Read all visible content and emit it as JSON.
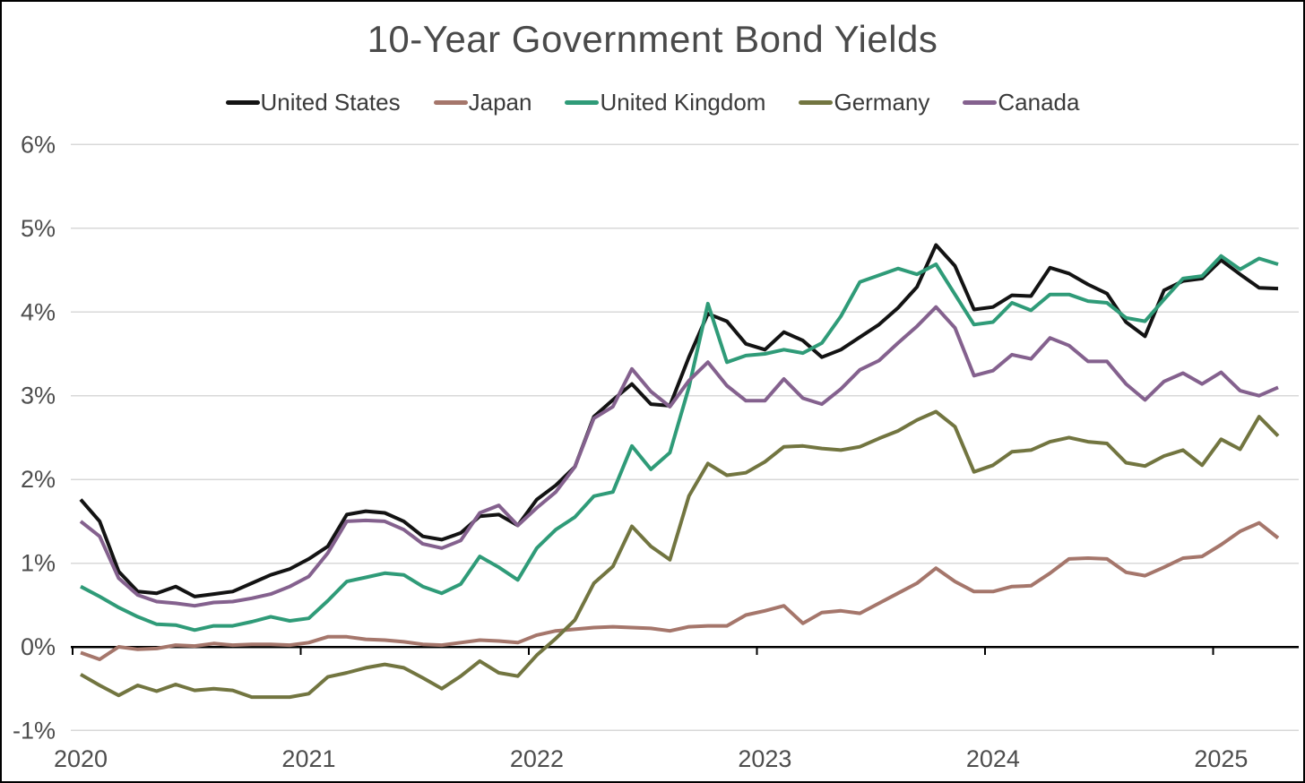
{
  "chart": {
    "title": "10-Year Government Bond Yields"
  },
  "colors": {
    "background": "#ffffff",
    "frame_border": "#000000",
    "gridline": "#d8d8d8",
    "zero_axis": "#000000",
    "title_text": "#4a4a4a",
    "legend_text": "#3a3a3a",
    "axis_label_text": "#4d4d4d"
  },
  "chart_data": {
    "type": "line",
    "title": "10-Year Government Bond Yields",
    "xlabel": "",
    "ylabel": "",
    "x_unit": "month",
    "x_start": "2020-01",
    "x_end": "2025-04",
    "points_per_series": 64,
    "grid": "horizontal",
    "legend_position": "top",
    "x_axis": {
      "tick_labels": [
        "2020",
        "2021",
        "2022",
        "2023",
        "2024",
        "2025"
      ],
      "tick_month_index": [
        0,
        12,
        24,
        36,
        48,
        60
      ]
    },
    "y_axis": {
      "ylim": [
        -1,
        6
      ],
      "tick_values": [
        6,
        5,
        4,
        3,
        2,
        1,
        0,
        -1
      ],
      "tick_labels": [
        "6%",
        "5%",
        "4%",
        "3%",
        "2%",
        "1%",
        "0%",
        "-1%"
      ]
    },
    "series": [
      {
        "name": "United States",
        "color": "#131313",
        "values": [
          1.76,
          1.5,
          0.9,
          0.66,
          0.64,
          0.72,
          0.6,
          0.63,
          0.66,
          0.76,
          0.86,
          0.93,
          1.05,
          1.2,
          1.58,
          1.62,
          1.6,
          1.5,
          1.32,
          1.28,
          1.36,
          1.56,
          1.58,
          1.45,
          1.76,
          1.93,
          2.15,
          2.75,
          2.95,
          3.14,
          2.9,
          2.88,
          3.46,
          3.98,
          3.89,
          3.62,
          3.55,
          3.76,
          3.66,
          3.46,
          3.55,
          3.7,
          3.85,
          4.05,
          4.3,
          4.8,
          4.55,
          4.03,
          4.06,
          4.2,
          4.19,
          4.53,
          4.46,
          4.33,
          4.22,
          3.88,
          3.71,
          4.26,
          4.37,
          4.4,
          4.62,
          4.45,
          4.29,
          4.28
        ]
      },
      {
        "name": "Japan",
        "color": "#a5766b",
        "values": [
          -0.07,
          -0.15,
          0.0,
          -0.03,
          -0.02,
          0.02,
          0.01,
          0.04,
          0.02,
          0.03,
          0.03,
          0.02,
          0.05,
          0.12,
          0.12,
          0.09,
          0.08,
          0.06,
          0.03,
          0.02,
          0.05,
          0.08,
          0.07,
          0.05,
          0.14,
          0.19,
          0.21,
          0.23,
          0.24,
          0.23,
          0.22,
          0.19,
          0.24,
          0.25,
          0.25,
          0.38,
          0.43,
          0.49,
          0.28,
          0.41,
          0.43,
          0.4,
          0.52,
          0.64,
          0.76,
          0.94,
          0.78,
          0.66,
          0.66,
          0.72,
          0.73,
          0.88,
          1.05,
          1.06,
          1.05,
          0.89,
          0.85,
          0.95,
          1.06,
          1.08,
          1.22,
          1.38,
          1.48,
          1.3
        ]
      },
      {
        "name": "United Kingdom",
        "color": "#2f9b78",
        "values": [
          0.72,
          0.6,
          0.47,
          0.36,
          0.27,
          0.26,
          0.2,
          0.25,
          0.25,
          0.3,
          0.36,
          0.31,
          0.34,
          0.55,
          0.78,
          0.83,
          0.88,
          0.86,
          0.72,
          0.64,
          0.75,
          1.08,
          0.95,
          0.8,
          1.18,
          1.4,
          1.55,
          1.8,
          1.85,
          2.4,
          2.12,
          2.32,
          3.1,
          4.1,
          3.4,
          3.48,
          3.5,
          3.55,
          3.51,
          3.63,
          3.95,
          4.36,
          4.44,
          4.52,
          4.45,
          4.57,
          4.21,
          3.85,
          3.88,
          4.11,
          4.02,
          4.21,
          4.21,
          4.13,
          4.11,
          3.93,
          3.89,
          4.15,
          4.4,
          4.43,
          4.67,
          4.51,
          4.64,
          4.57
        ]
      },
      {
        "name": "Germany",
        "color": "#727540",
        "values": [
          -0.33,
          -0.46,
          -0.58,
          -0.46,
          -0.53,
          -0.45,
          -0.52,
          -0.5,
          -0.52,
          -0.6,
          -0.6,
          -0.6,
          -0.56,
          -0.36,
          -0.31,
          -0.25,
          -0.21,
          -0.25,
          -0.37,
          -0.5,
          -0.35,
          -0.17,
          -0.31,
          -0.35,
          -0.1,
          0.1,
          0.32,
          0.76,
          0.96,
          1.44,
          1.2,
          1.04,
          1.8,
          2.19,
          2.05,
          2.08,
          2.21,
          2.39,
          2.4,
          2.37,
          2.35,
          2.39,
          2.49,
          2.58,
          2.71,
          2.81,
          2.63,
          2.09,
          2.17,
          2.33,
          2.35,
          2.45,
          2.5,
          2.45,
          2.43,
          2.2,
          2.16,
          2.28,
          2.35,
          2.17,
          2.48,
          2.36,
          2.75,
          2.52
        ]
      },
      {
        "name": "Canada",
        "color": "#84618e",
        "values": [
          1.5,
          1.32,
          0.82,
          0.62,
          0.54,
          0.52,
          0.49,
          0.53,
          0.54,
          0.58,
          0.63,
          0.72,
          0.84,
          1.12,
          1.5,
          1.51,
          1.5,
          1.4,
          1.23,
          1.18,
          1.27,
          1.6,
          1.69,
          1.45,
          1.66,
          1.85,
          2.15,
          2.73,
          2.87,
          3.32,
          3.05,
          2.87,
          3.18,
          3.4,
          3.12,
          2.94,
          2.94,
          3.2,
          2.97,
          2.9,
          3.08,
          3.31,
          3.42,
          3.63,
          3.83,
          4.06,
          3.81,
          3.24,
          3.3,
          3.49,
          3.44,
          3.69,
          3.6,
          3.41,
          3.41,
          3.14,
          2.95,
          3.17,
          3.27,
          3.14,
          3.28,
          3.06,
          3.0,
          3.1
        ]
      }
    ]
  }
}
